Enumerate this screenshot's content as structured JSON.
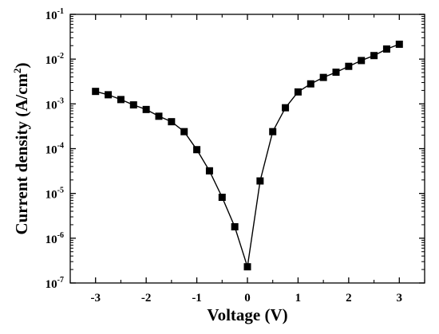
{
  "chart_data": {
    "type": "scatter",
    "xlabel": "Voltage (V)",
    "ylabel_main": "Current density (A/cm",
    "ylabel_sup": "2",
    "ylabel_close": ")",
    "xlim": [
      -3.5,
      3.5
    ],
    "ylim": [
      1e-07,
      0.1
    ],
    "yscale": "log",
    "x_ticks": [
      -3,
      -2,
      -1,
      0,
      1,
      2,
      3
    ],
    "x_tick_labels": [
      "-3",
      "-2",
      "-1",
      "0",
      "1",
      "2",
      "3"
    ],
    "y_ticks": [
      {
        "value": 1e-07,
        "base": "10",
        "exp": "-7"
      },
      {
        "value": 1e-06,
        "base": "10",
        "exp": "-6"
      },
      {
        "value": 1e-05,
        "base": "10",
        "exp": "-5"
      },
      {
        "value": 0.0001,
        "base": "10",
        "exp": "-4"
      },
      {
        "value": 0.001,
        "base": "10",
        "exp": "-3"
      },
      {
        "value": 0.01,
        "base": "10",
        "exp": "-2"
      },
      {
        "value": 0.1,
        "base": "10",
        "exp": "-1"
      }
    ],
    "series": [
      {
        "marker": "square",
        "color": "#000000",
        "line": true,
        "x": [
          -3,
          -2.75,
          -2.5,
          -2.25,
          -2,
          -1.75,
          -1.5,
          -1.25,
          -1,
          -0.75,
          -0.5,
          -0.25,
          0,
          0.25,
          0.5,
          0.75,
          1,
          1.25,
          1.5,
          1.75,
          2,
          2.25,
          2.5,
          2.75,
          3
        ],
        "y": [
          0.0019,
          0.0016,
          0.00125,
          0.00095,
          0.00075,
          0.00053,
          0.0004,
          0.00024,
          9.5e-05,
          3.2e-05,
          8.2e-06,
          1.8e-06,
          2.3e-07,
          1.9e-05,
          0.00024,
          0.00082,
          0.00185,
          0.0028,
          0.0039,
          0.0051,
          0.0069,
          0.0093,
          0.012,
          0.0168,
          0.0215
        ]
      }
    ]
  }
}
